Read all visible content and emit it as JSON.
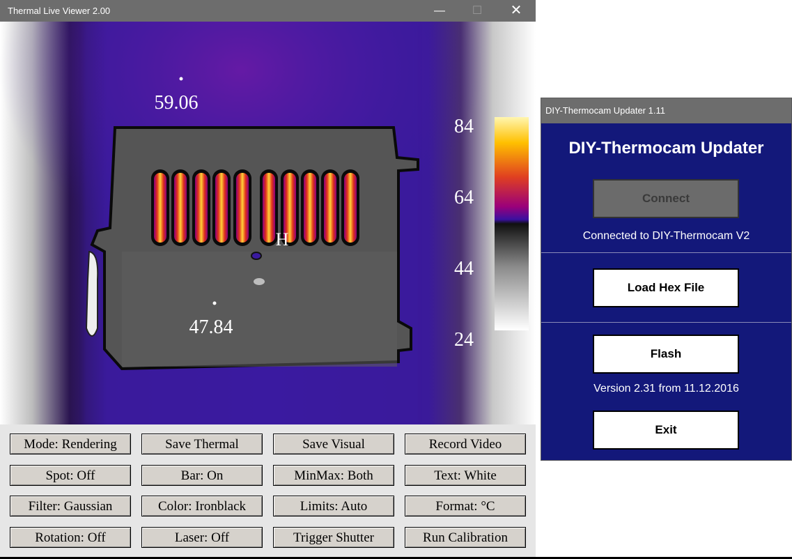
{
  "viewer": {
    "title": "Thermal Live Viewer 2.00",
    "window_buttons": {
      "minimize": "—",
      "maximize": "☐",
      "close": "✕"
    },
    "spots": {
      "max_label": "59.06",
      "min_label": "47.84",
      "hot_marker": "H"
    },
    "scale": {
      "labels": [
        "84",
        "64",
        "44",
        "24"
      ]
    },
    "controls": [
      [
        "Mode: Rendering",
        "Save Thermal",
        "Save Visual",
        "Record Video"
      ],
      [
        "Spot: Off",
        "Bar: On",
        "MinMax: Both",
        "Text: White"
      ],
      [
        "Filter: Gaussian",
        "Color: Ironblack",
        "Limits: Auto",
        "Format: °C"
      ],
      [
        "Rotation: Off",
        "Laser: Off",
        "Trigger Shutter",
        "Run Calibration"
      ]
    ]
  },
  "updater": {
    "title": "DIY-Thermocam Updater 1.11",
    "heading": "DIY-Thermocam Updater",
    "connect_label": "Connect",
    "status": "Connected to DIY-Thermocam V2",
    "load_hex_label": "Load Hex File",
    "flash_label": "Flash",
    "version": "Version 2.31 from 11.12.2016",
    "exit_label": "Exit"
  },
  "colors": {
    "titlebar": "#6d6d6d",
    "updater_background": "#13187a",
    "palette": "Ironblack"
  }
}
